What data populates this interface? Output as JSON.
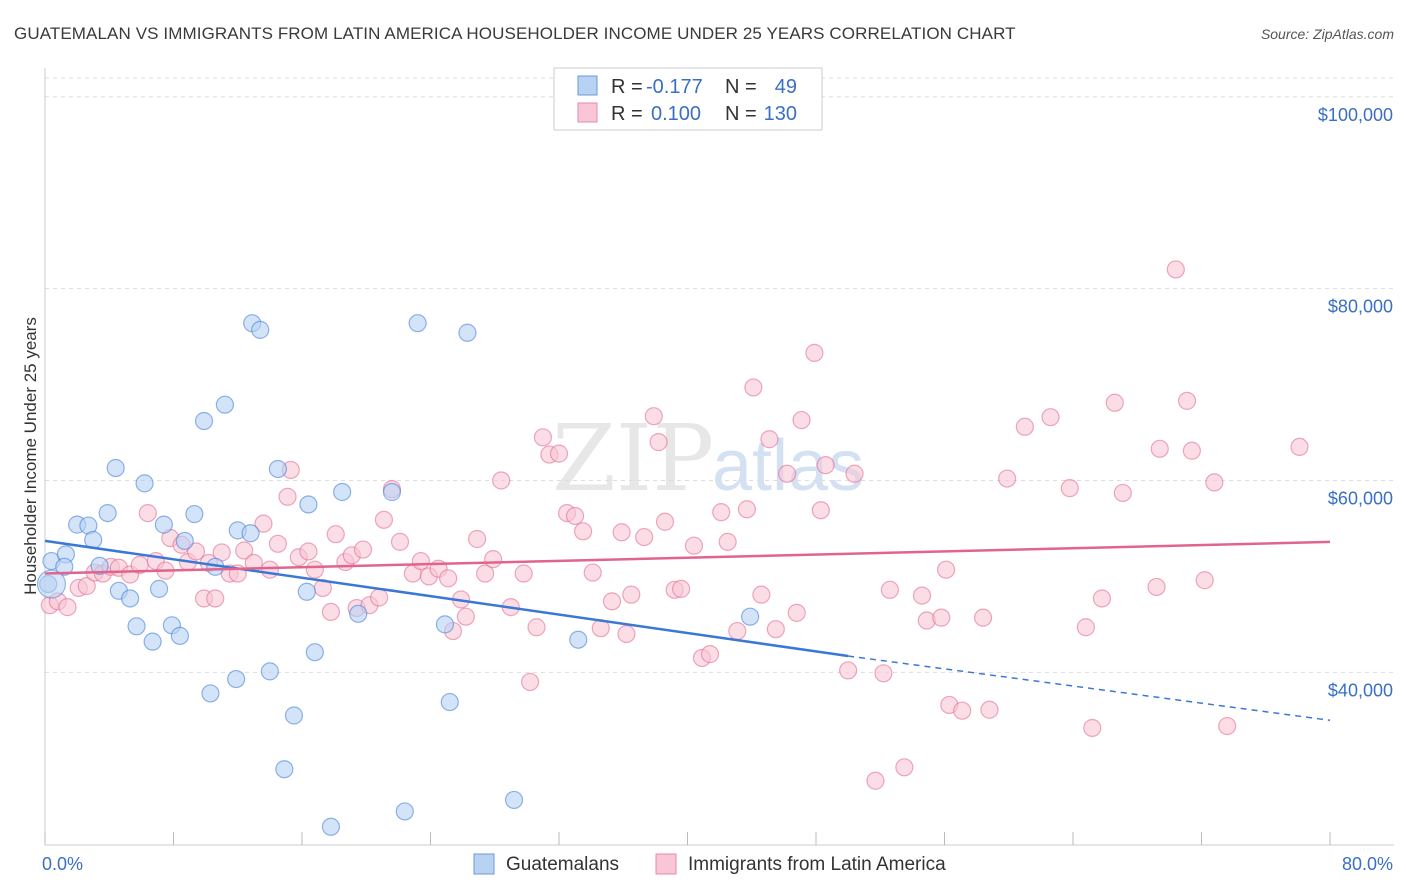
{
  "title": "GUATEMALAN VS IMMIGRANTS FROM LATIN AMERICA HOUSEHOLDER INCOME UNDER 25 YEARS CORRELATION CHART",
  "source": "Source: ZipAtlas.com",
  "watermark": {
    "part1": "ZIP",
    "part2": "atlas"
  },
  "legend": {
    "rows": [
      {
        "r_label": "R =",
        "r_value": "-0.177",
        "n_label": "N =",
        "n_value": "49",
        "fill": "#b8d2f3",
        "stroke": "#6a9bd8"
      },
      {
        "r_label": "R =",
        "r_value": "0.100",
        "n_label": "N =",
        "n_value": "130",
        "fill": "#f8c6d6",
        "stroke": "#e68aa8"
      }
    ]
  },
  "bottom_legend": {
    "items": [
      "Guatemalans",
      "Immigrants from Latin America"
    ]
  },
  "chart_data": {
    "type": "scatter",
    "title": "GUATEMALAN VS IMMIGRANTS FROM LATIN AMERICA HOUSEHOLDER INCOME UNDER 25 YEARS CORRELATION CHART",
    "xlabel": "",
    "ylabel": "Householder Income Under 25 years",
    "xlim": [
      0,
      80
    ],
    "ylim": [
      22000,
      103000
    ],
    "x_tick_labels": [
      "0.0%",
      "80.0%"
    ],
    "y_ticks": [
      40000,
      60000,
      80000,
      100000
    ],
    "y_tick_labels": [
      "$40,000",
      "$60,000",
      "$80,000",
      "$100,000"
    ],
    "grid": true,
    "legend_position": "top-center",
    "colors": {
      "guatemalans": "#3a78d6",
      "immigrants": "#e0648e"
    },
    "series": [
      {
        "name": "Guatemalans",
        "color": "#3a78d6",
        "fill": "#b8d2f3",
        "trend": {
          "x": [
            0,
            50
          ],
          "y": [
            53700,
            41700
          ],
          "dashed_to": [
            80,
            35000
          ]
        },
        "points": [
          [
            0.2,
            49200
          ],
          [
            0.4,
            51600
          ],
          [
            1.3,
            52300
          ],
          [
            1.2,
            51000
          ],
          [
            2.0,
            55400
          ],
          [
            2.7,
            55300
          ],
          [
            3.0,
            53800
          ],
          [
            3.4,
            51100
          ],
          [
            3.9,
            56600
          ],
          [
            4.4,
            61300
          ],
          [
            4.6,
            48500
          ],
          [
            5.3,
            47700
          ],
          [
            5.7,
            44800
          ],
          [
            6.2,
            59700
          ],
          [
            6.7,
            43200
          ],
          [
            7.1,
            48700
          ],
          [
            7.4,
            55400
          ],
          [
            7.9,
            44900
          ],
          [
            8.4,
            43800
          ],
          [
            8.7,
            53700
          ],
          [
            9.3,
            56500
          ],
          [
            9.9,
            66200
          ],
          [
            10.3,
            37800
          ],
          [
            10.6,
            51000
          ],
          [
            11.2,
            67900
          ],
          [
            11.9,
            39300
          ],
          [
            12.0,
            54800
          ],
          [
            12.8,
            54500
          ],
          [
            12.9,
            76400
          ],
          [
            13.4,
            75700
          ],
          [
            14.0,
            40100
          ],
          [
            14.5,
            61200
          ],
          [
            14.9,
            29900
          ],
          [
            15.5,
            35500
          ],
          [
            16.4,
            57500
          ],
          [
            16.3,
            48400
          ],
          [
            16.8,
            42100
          ],
          [
            17.8,
            23900
          ],
          [
            18.5,
            58800
          ],
          [
            19.5,
            46100
          ],
          [
            21.6,
            58800
          ],
          [
            22.4,
            25500
          ],
          [
            23.2,
            76400
          ],
          [
            24.9,
            45000
          ],
          [
            25.2,
            36900
          ],
          [
            26.3,
            75400
          ],
          [
            29.2,
            26700
          ],
          [
            33.2,
            43400
          ],
          [
            43.9,
            45800
          ]
        ]
      },
      {
        "name": "Immigrants from Latin America",
        "color": "#e0648e",
        "fill": "#f8c6d6",
        "trend": {
          "x": [
            0,
            80
          ],
          "y": [
            50300,
            53600
          ]
        },
        "points": [
          [
            0.3,
            47000
          ],
          [
            0.8,
            47400
          ],
          [
            1.4,
            46800
          ],
          [
            2.1,
            48800
          ],
          [
            2.6,
            49000
          ],
          [
            3.1,
            50400
          ],
          [
            3.6,
            50300
          ],
          [
            4.1,
            51000
          ],
          [
            4.6,
            50900
          ],
          [
            5.3,
            50200
          ],
          [
            5.9,
            51200
          ],
          [
            6.4,
            56600
          ],
          [
            6.9,
            51600
          ],
          [
            7.5,
            50600
          ],
          [
            7.8,
            54000
          ],
          [
            8.5,
            53300
          ],
          [
            8.9,
            51500
          ],
          [
            9.4,
            52600
          ],
          [
            9.9,
            47700
          ],
          [
            10.2,
            51400
          ],
          [
            10.6,
            47700
          ],
          [
            11.0,
            52500
          ],
          [
            11.5,
            50300
          ],
          [
            12.0,
            50300
          ],
          [
            12.4,
            52700
          ],
          [
            13.0,
            51400
          ],
          [
            13.6,
            55500
          ],
          [
            14.0,
            50700
          ],
          [
            14.5,
            53400
          ],
          [
            15.1,
            58300
          ],
          [
            15.3,
            61100
          ],
          [
            15.8,
            52000
          ],
          [
            16.4,
            52600
          ],
          [
            16.8,
            50700
          ],
          [
            17.3,
            48800
          ],
          [
            17.8,
            46300
          ],
          [
            18.1,
            54400
          ],
          [
            18.7,
            51500
          ],
          [
            19.1,
            52200
          ],
          [
            19.4,
            46700
          ],
          [
            19.8,
            52800
          ],
          [
            20.2,
            47000
          ],
          [
            20.8,
            47800
          ],
          [
            21.1,
            55900
          ],
          [
            21.6,
            59100
          ],
          [
            22.1,
            53600
          ],
          [
            22.9,
            50300
          ],
          [
            23.4,
            51600
          ],
          [
            23.9,
            50000
          ],
          [
            24.5,
            50800
          ],
          [
            25.1,
            49800
          ],
          [
            25.4,
            44300
          ],
          [
            25.9,
            47600
          ],
          [
            26.2,
            45800
          ],
          [
            26.9,
            53900
          ],
          [
            27.4,
            50300
          ],
          [
            27.9,
            51800
          ],
          [
            28.4,
            60000
          ],
          [
            29.0,
            46800
          ],
          [
            29.8,
            50300
          ],
          [
            30.2,
            39000
          ],
          [
            30.6,
            44700
          ],
          [
            31.0,
            64500
          ],
          [
            31.4,
            62700
          ],
          [
            32.0,
            62800
          ],
          [
            32.5,
            56600
          ],
          [
            33.0,
            56300
          ],
          [
            33.5,
            54700
          ],
          [
            34.1,
            50400
          ],
          [
            34.6,
            44600
          ],
          [
            35.3,
            47400
          ],
          [
            35.9,
            54600
          ],
          [
            36.2,
            44000
          ],
          [
            36.5,
            48100
          ],
          [
            37.3,
            54100
          ],
          [
            37.9,
            66700
          ],
          [
            38.2,
            64000
          ],
          [
            38.6,
            55700
          ],
          [
            39.2,
            48600
          ],
          [
            39.6,
            48700
          ],
          [
            40.4,
            53200
          ],
          [
            40.9,
            41500
          ],
          [
            41.4,
            41900
          ],
          [
            42.1,
            56700
          ],
          [
            42.5,
            53600
          ],
          [
            43.1,
            44300
          ],
          [
            43.7,
            57000
          ],
          [
            44.1,
            69700
          ],
          [
            44.6,
            48100
          ],
          [
            45.1,
            64300
          ],
          [
            45.5,
            44500
          ],
          [
            46.2,
            60700
          ],
          [
            46.8,
            46200
          ],
          [
            47.1,
            66300
          ],
          [
            47.9,
            73300
          ],
          [
            48.3,
            56900
          ],
          [
            48.6,
            61600
          ],
          [
            50.0,
            40200
          ],
          [
            50.4,
            60700
          ],
          [
            51.7,
            28700
          ],
          [
            52.2,
            39900
          ],
          [
            52.6,
            48600
          ],
          [
            53.5,
            30100
          ],
          [
            54.6,
            48000
          ],
          [
            54.9,
            45400
          ],
          [
            55.8,
            45700
          ],
          [
            56.1,
            50700
          ],
          [
            56.3,
            36600
          ],
          [
            57.1,
            36000
          ],
          [
            58.4,
            45700
          ],
          [
            58.8,
            36100
          ],
          [
            59.9,
            60200
          ],
          [
            61.0,
            65600
          ],
          [
            62.6,
            66600
          ],
          [
            63.8,
            59200
          ],
          [
            64.8,
            44700
          ],
          [
            65.2,
            34200
          ],
          [
            65.8,
            47700
          ],
          [
            66.6,
            68100
          ],
          [
            67.1,
            58700
          ],
          [
            69.2,
            48900
          ],
          [
            69.4,
            63300
          ],
          [
            70.4,
            82000
          ],
          [
            71.1,
            68300
          ],
          [
            71.4,
            63100
          ],
          [
            72.2,
            49600
          ],
          [
            72.8,
            59800
          ],
          [
            73.6,
            34400
          ],
          [
            78.1,
            63500
          ]
        ]
      }
    ]
  }
}
